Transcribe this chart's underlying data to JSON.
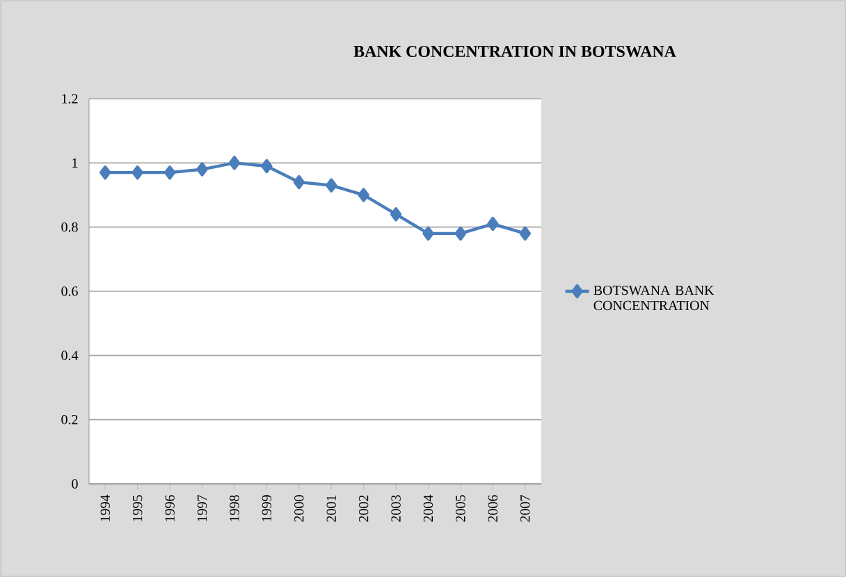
{
  "chart_data": {
    "type": "line",
    "title": "BANK CONCENTRATION IN BOTSWANA",
    "categories": [
      "1994",
      "1995",
      "1996",
      "1997",
      "1998",
      "1999",
      "2000",
      "2001",
      "2002",
      "2003",
      "2004",
      "2005",
      "2006",
      "2007"
    ],
    "series": [
      {
        "name": "BOTSWANA BANK CONCENTRATION",
        "color": "#4a7ebb",
        "values": [
          0.97,
          0.97,
          0.97,
          0.98,
          1.0,
          0.99,
          0.94,
          0.93,
          0.9,
          0.84,
          0.78,
          0.78,
          0.81,
          0.78
        ]
      }
    ],
    "ylim": [
      0,
      1.2
    ],
    "yticks": [
      0,
      0.2,
      0.4,
      0.6,
      0.8,
      1,
      1.2
    ],
    "grid": "y",
    "legend": "right",
    "marker": "diamond",
    "line_style": "solid"
  }
}
